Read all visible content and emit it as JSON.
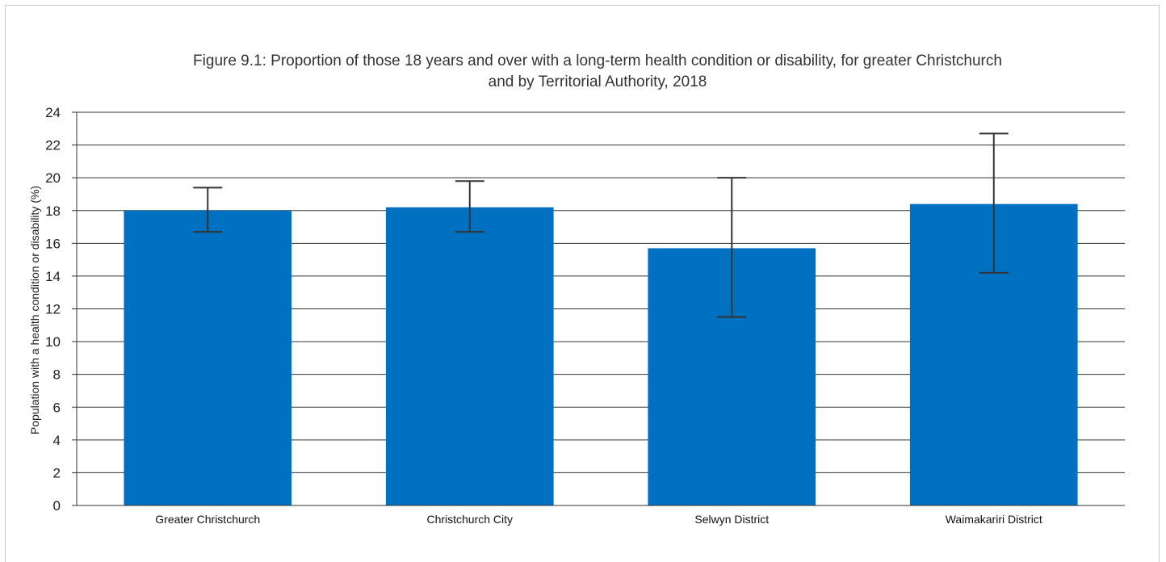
{
  "chart_data": {
    "type": "bar",
    "title_lines": [
      "Figure 9.1: Proportion of those 18 years and over with a long-term health condition or disability, for greater Christchurch",
      "and by Territorial Authority, 2018"
    ],
    "xlabel": "",
    "ylabel": "Population with a health condition or disability (%)",
    "categories": [
      "Greater Christchurch",
      "Christchurch City",
      "Selwyn District",
      "Waimakariri District"
    ],
    "values": [
      18.0,
      18.2,
      15.7,
      18.4
    ],
    "error_low": [
      16.7,
      16.7,
      11.5,
      14.2
    ],
    "error_high": [
      19.4,
      19.8,
      20.0,
      22.7
    ],
    "ylim": [
      0,
      24
    ],
    "yticks": [
      0,
      2,
      4,
      6,
      8,
      10,
      12,
      14,
      16,
      18,
      20,
      22,
      24
    ],
    "grid": true,
    "legend": "none",
    "colors": {
      "bar": "#0070c0",
      "error_bar": "#333333",
      "grid": "#333333",
      "axis": "#333333"
    }
  }
}
